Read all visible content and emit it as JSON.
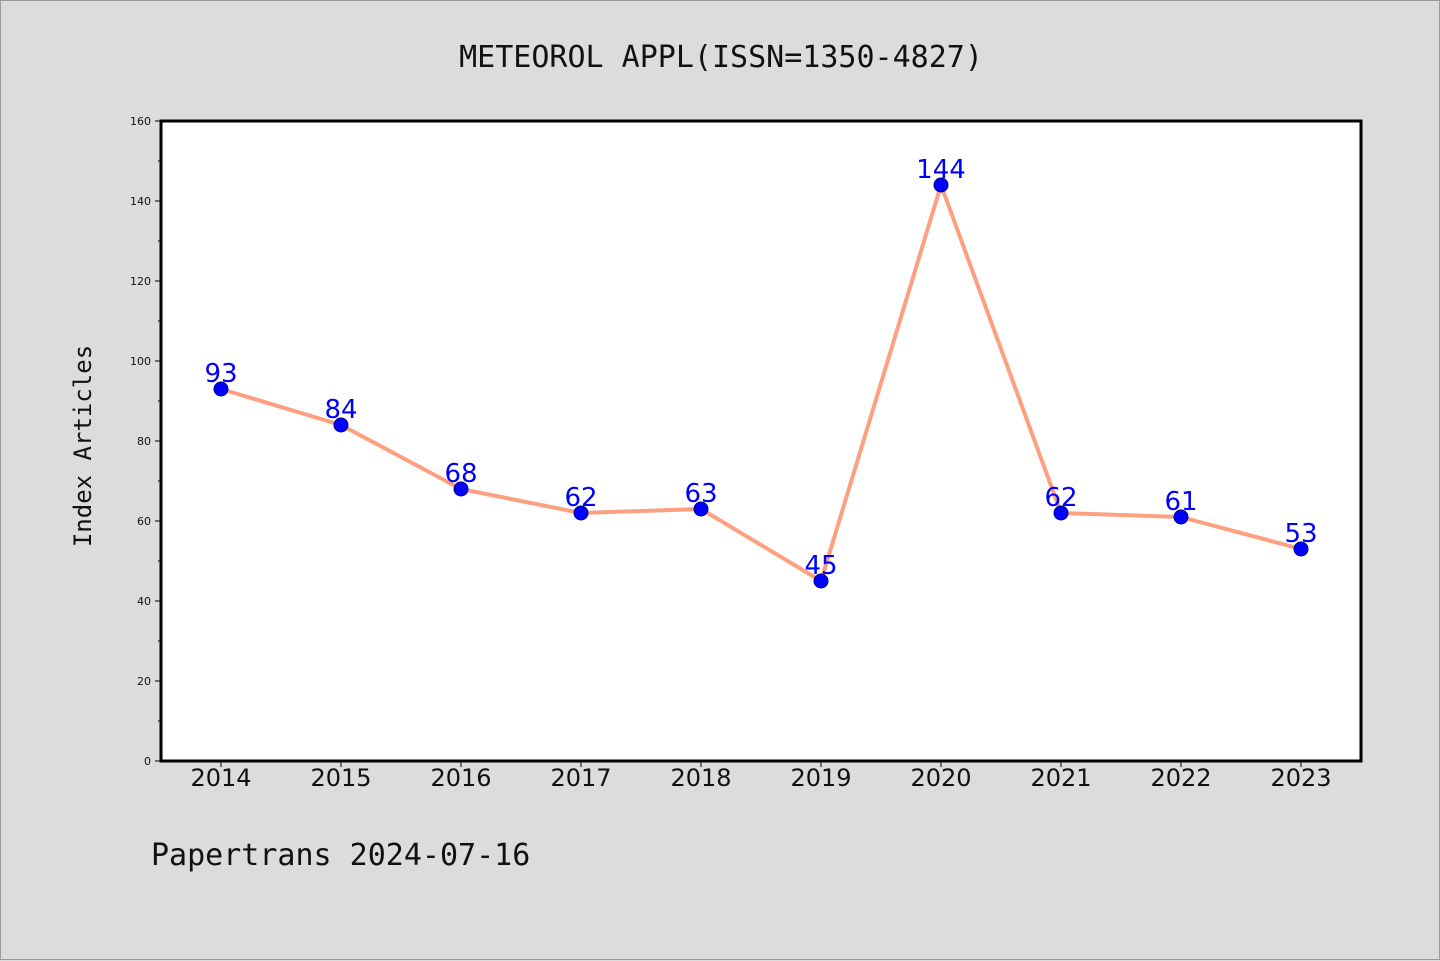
{
  "chart_data": {
    "type": "line",
    "title": "METEOROL APPL(ISSN=1350-4827)",
    "xlabel": "",
    "ylabel": "Index Articles",
    "categories": [
      "2014",
      "2015",
      "2016",
      "2017",
      "2018",
      "2019",
      "2020",
      "2021",
      "2022",
      "2023"
    ],
    "values": [
      93,
      84,
      68,
      62,
      63,
      45,
      144,
      62,
      61,
      53
    ],
    "ylim": [
      0,
      160
    ],
    "yticks": [
      0,
      20,
      40,
      60,
      80,
      100,
      120,
      140,
      160
    ],
    "data_labels": true,
    "grid": false,
    "colors": {
      "line": "#fca07f",
      "marker": "#0000ff",
      "marker_edge": "#00008b",
      "data_label": "#0000ff",
      "background": "#dcdcdc",
      "plot_area": "#ffffff"
    }
  },
  "footer": {
    "text": "Papertrans 2024-07-16"
  }
}
